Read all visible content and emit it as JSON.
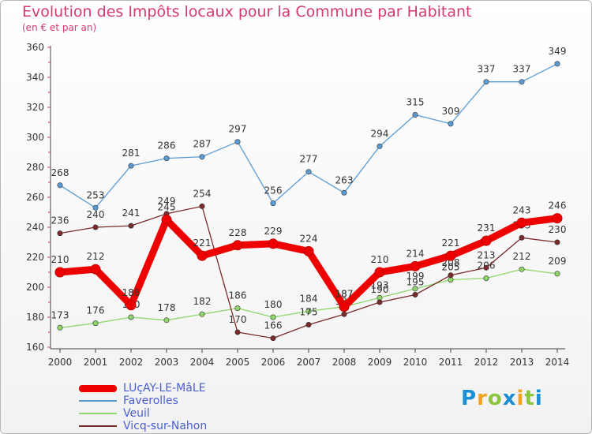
{
  "chart_data": {
    "type": "line",
    "title": "Evolution des Impôts locaux pour la Commune par Habitant",
    "subtitle": "(en € et par an)",
    "xlabel": "",
    "ylabel": "",
    "ylim": [
      160,
      360
    ],
    "y_ticks": [
      160,
      180,
      200,
      220,
      240,
      260,
      280,
      300,
      320,
      340,
      360
    ],
    "categories": [
      "2000",
      "2001",
      "2002",
      "2003",
      "2004",
      "2005",
      "2006",
      "2007",
      "2008",
      "2009",
      "2010",
      "2011",
      "2012",
      "2013",
      "2014"
    ],
    "grid": false,
    "legend_position": "bottom-left",
    "series": [
      {
        "name": "Faverolles",
        "color": "#5b9bd5",
        "values": [
          268,
          253,
          281,
          286,
          287,
          297,
          256,
          277,
          263,
          294,
          315,
          309,
          337,
          337,
          349
        ],
        "labels": [
          "268",
          "253",
          "281",
          "286",
          "287",
          "297",
          "256",
          "277",
          "263",
          "294",
          "315",
          "309",
          "337",
          "337",
          "349"
        ]
      },
      {
        "name": "Veuil",
        "color": "#8fd66b",
        "values": [
          173,
          176,
          180,
          178,
          182,
          186,
          180,
          184,
          187,
          193,
          199,
          205,
          206,
          212,
          209
        ],
        "labels": [
          "173",
          "176",
          "180",
          "178",
          "182",
          "186",
          "180",
          "184",
          "187",
          "193",
          "199",
          "205",
          "206",
          "212",
          "209"
        ]
      },
      {
        "name": "Vicq-sur-Nahon",
        "color": "#7a2a2a",
        "values": [
          236,
          240,
          241,
          249,
          254,
          170,
          166,
          175,
          182,
          190,
          195,
          208,
          213,
          233,
          230
        ],
        "labels": [
          "236",
          "240",
          "241",
          "249",
          "254",
          "170",
          "166",
          "175",
          "182",
          "190",
          "195",
          "208",
          "213",
          "233",
          "230"
        ]
      },
      {
        "name": "LUçAY-LE-MâLE",
        "color": "#ee0000",
        "values": [
          210,
          212,
          188,
          245,
          221,
          228,
          229,
          224,
          187,
          210,
          214,
          221,
          231,
          243,
          246
        ],
        "labels": [
          "210",
          "212",
          "188",
          "245",
          "221",
          "228",
          "229",
          "224",
          "187",
          "210",
          "214",
          "221",
          "231",
          "243",
          "246"
        ]
      }
    ],
    "legend": [
      "LUçAY-LE-MâLE",
      "Faverolles",
      "Veuil",
      "Vicq-sur-Nahon"
    ]
  },
  "logo": {
    "letters": [
      "P",
      "r",
      "o",
      "x",
      "i",
      "t",
      "i"
    ],
    "colors": [
      "#1a8fd6",
      "#f3a21b",
      "#8cc63f",
      "#1a8fd6",
      "#f3a21b",
      "#8cc63f",
      "#1a8fd6"
    ]
  }
}
